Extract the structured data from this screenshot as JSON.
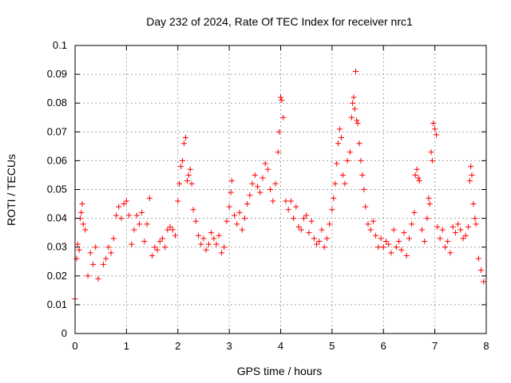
{
  "chart_data": {
    "type": "scatter",
    "title": "Day 232 of 2024, Rate Of TEC Index for receiver nrc1",
    "xlabel": "GPS time / hours",
    "ylabel": "ROTI / TECUs",
    "xlim": [
      0,
      8
    ],
    "ylim": [
      0,
      0.1
    ],
    "xticks": [
      "0",
      "1",
      "2",
      "3",
      "4",
      "5",
      "6",
      "7",
      "8"
    ],
    "yticks": [
      "0",
      "0.01",
      "0.02",
      "0.03",
      "0.04",
      "0.05",
      "0.06",
      "0.07",
      "0.08",
      "0.09",
      "0.1"
    ],
    "grid": true,
    "marker": "+",
    "color": "#ff0000",
    "series": [
      {
        "name": "ROTI",
        "points": [
          [
            0.0,
            0.012
          ],
          [
            0.03,
            0.026
          ],
          [
            0.05,
            0.031
          ],
          [
            0.08,
            0.029
          ],
          [
            0.1,
            0.04
          ],
          [
            0.12,
            0.042
          ],
          [
            0.14,
            0.045
          ],
          [
            0.16,
            0.038
          ],
          [
            0.2,
            0.036
          ],
          [
            0.25,
            0.02
          ],
          [
            0.3,
            0.028
          ],
          [
            0.35,
            0.024
          ],
          [
            0.4,
            0.03
          ],
          [
            0.45,
            0.019
          ],
          [
            0.55,
            0.024
          ],
          [
            0.6,
            0.026
          ],
          [
            0.65,
            0.03
          ],
          [
            0.7,
            0.028
          ],
          [
            0.75,
            0.033
          ],
          [
            0.8,
            0.041
          ],
          [
            0.85,
            0.044
          ],
          [
            0.9,
            0.04
          ],
          [
            0.95,
            0.045
          ],
          [
            1.0,
            0.046
          ],
          [
            1.05,
            0.041
          ],
          [
            1.1,
            0.031
          ],
          [
            1.15,
            0.036
          ],
          [
            1.2,
            0.041
          ],
          [
            1.25,
            0.038
          ],
          [
            1.3,
            0.042
          ],
          [
            1.35,
            0.032
          ],
          [
            1.4,
            0.038
          ],
          [
            1.45,
            0.047
          ],
          [
            1.5,
            0.027
          ],
          [
            1.55,
            0.03
          ],
          [
            1.6,
            0.029
          ],
          [
            1.65,
            0.032
          ],
          [
            1.7,
            0.033
          ],
          [
            1.75,
            0.03
          ],
          [
            1.8,
            0.036
          ],
          [
            1.85,
            0.037
          ],
          [
            1.9,
            0.036
          ],
          [
            1.95,
            0.034
          ],
          [
            2.0,
            0.046
          ],
          [
            2.03,
            0.052
          ],
          [
            2.06,
            0.058
          ],
          [
            2.09,
            0.06
          ],
          [
            2.12,
            0.066
          ],
          [
            2.15,
            0.068
          ],
          [
            2.18,
            0.053
          ],
          [
            2.21,
            0.055
          ],
          [
            2.24,
            0.057
          ],
          [
            2.27,
            0.052
          ],
          [
            2.3,
            0.043
          ],
          [
            2.35,
            0.039
          ],
          [
            2.4,
            0.034
          ],
          [
            2.45,
            0.031
          ],
          [
            2.5,
            0.033
          ],
          [
            2.55,
            0.029
          ],
          [
            2.6,
            0.031
          ],
          [
            2.65,
            0.035
          ],
          [
            2.7,
            0.033
          ],
          [
            2.75,
            0.031
          ],
          [
            2.8,
            0.034
          ],
          [
            2.85,
            0.028
          ],
          [
            2.9,
            0.03
          ],
          [
            2.95,
            0.039
          ],
          [
            3.0,
            0.044
          ],
          [
            3.03,
            0.049
          ],
          [
            3.05,
            0.053
          ],
          [
            3.1,
            0.041
          ],
          [
            3.15,
            0.038
          ],
          [
            3.2,
            0.042
          ],
          [
            3.25,
            0.036
          ],
          [
            3.3,
            0.04
          ],
          [
            3.35,
            0.045
          ],
          [
            3.4,
            0.048
          ],
          [
            3.45,
            0.052
          ],
          [
            3.5,
            0.055
          ],
          [
            3.55,
            0.051
          ],
          [
            3.6,
            0.049
          ],
          [
            3.65,
            0.054
          ],
          [
            3.7,
            0.059
          ],
          [
            3.75,
            0.057
          ],
          [
            3.8,
            0.05
          ],
          [
            3.85,
            0.046
          ],
          [
            3.9,
            0.052
          ],
          [
            3.95,
            0.063
          ],
          [
            3.97,
            0.07
          ],
          [
            4.0,
            0.082
          ],
          [
            4.02,
            0.081
          ],
          [
            4.05,
            0.075
          ],
          [
            4.1,
            0.046
          ],
          [
            4.15,
            0.043
          ],
          [
            4.2,
            0.046
          ],
          [
            4.25,
            0.04
          ],
          [
            4.3,
            0.044
          ],
          [
            4.35,
            0.037
          ],
          [
            4.4,
            0.036
          ],
          [
            4.45,
            0.04
          ],
          [
            4.5,
            0.041
          ],
          [
            4.55,
            0.035
          ],
          [
            4.6,
            0.039
          ],
          [
            4.65,
            0.033
          ],
          [
            4.7,
            0.031
          ],
          [
            4.75,
            0.032
          ],
          [
            4.8,
            0.036
          ],
          [
            4.85,
            0.03
          ],
          [
            4.9,
            0.033
          ],
          [
            4.95,
            0.038
          ],
          [
            5.0,
            0.043
          ],
          [
            5.03,
            0.047
          ],
          [
            5.06,
            0.052
          ],
          [
            5.09,
            0.059
          ],
          [
            5.12,
            0.066
          ],
          [
            5.15,
            0.071
          ],
          [
            5.18,
            0.068
          ],
          [
            5.21,
            0.055
          ],
          [
            5.25,
            0.052
          ],
          [
            5.3,
            0.06
          ],
          [
            5.35,
            0.063
          ],
          [
            5.38,
            0.075
          ],
          [
            5.4,
            0.08
          ],
          [
            5.42,
            0.082
          ],
          [
            5.44,
            0.078
          ],
          [
            5.46,
            0.091
          ],
          [
            5.48,
            0.074
          ],
          [
            5.5,
            0.073
          ],
          [
            5.53,
            0.066
          ],
          [
            5.56,
            0.06
          ],
          [
            5.59,
            0.055
          ],
          [
            5.62,
            0.05
          ],
          [
            5.65,
            0.044
          ],
          [
            5.7,
            0.038
          ],
          [
            5.75,
            0.036
          ],
          [
            5.8,
            0.039
          ],
          [
            5.85,
            0.034
          ],
          [
            5.9,
            0.03
          ],
          [
            5.95,
            0.033
          ],
          [
            6.0,
            0.03
          ],
          [
            6.05,
            0.032
          ],
          [
            6.1,
            0.031
          ],
          [
            6.15,
            0.028
          ],
          [
            6.2,
            0.036
          ],
          [
            6.25,
            0.03
          ],
          [
            6.3,
            0.032
          ],
          [
            6.35,
            0.029
          ],
          [
            6.4,
            0.035
          ],
          [
            6.45,
            0.027
          ],
          [
            6.5,
            0.033
          ],
          [
            6.55,
            0.038
          ],
          [
            6.6,
            0.042
          ],
          [
            6.62,
            0.055
          ],
          [
            6.65,
            0.057
          ],
          [
            6.68,
            0.054
          ],
          [
            6.7,
            0.053
          ],
          [
            6.75,
            0.036
          ],
          [
            6.8,
            0.032
          ],
          [
            6.85,
            0.04
          ],
          [
            6.88,
            0.047
          ],
          [
            6.9,
            0.045
          ],
          [
            6.93,
            0.063
          ],
          [
            6.95,
            0.06
          ],
          [
            6.97,
            0.073
          ],
          [
            7.0,
            0.071
          ],
          [
            7.03,
            0.069
          ],
          [
            7.05,
            0.037
          ],
          [
            7.1,
            0.033
          ],
          [
            7.15,
            0.036
          ],
          [
            7.2,
            0.03
          ],
          [
            7.25,
            0.032
          ],
          [
            7.3,
            0.028
          ],
          [
            7.35,
            0.037
          ],
          [
            7.4,
            0.035
          ],
          [
            7.45,
            0.038
          ],
          [
            7.5,
            0.036
          ],
          [
            7.55,
            0.033
          ],
          [
            7.6,
            0.034
          ],
          [
            7.65,
            0.037
          ],
          [
            7.68,
            0.053
          ],
          [
            7.7,
            0.058
          ],
          [
            7.72,
            0.055
          ],
          [
            7.75,
            0.045
          ],
          [
            7.78,
            0.04
          ],
          [
            7.8,
            0.038
          ],
          [
            7.85,
            0.026
          ],
          [
            7.9,
            0.022
          ],
          [
            7.95,
            0.018
          ]
        ]
      }
    ]
  }
}
